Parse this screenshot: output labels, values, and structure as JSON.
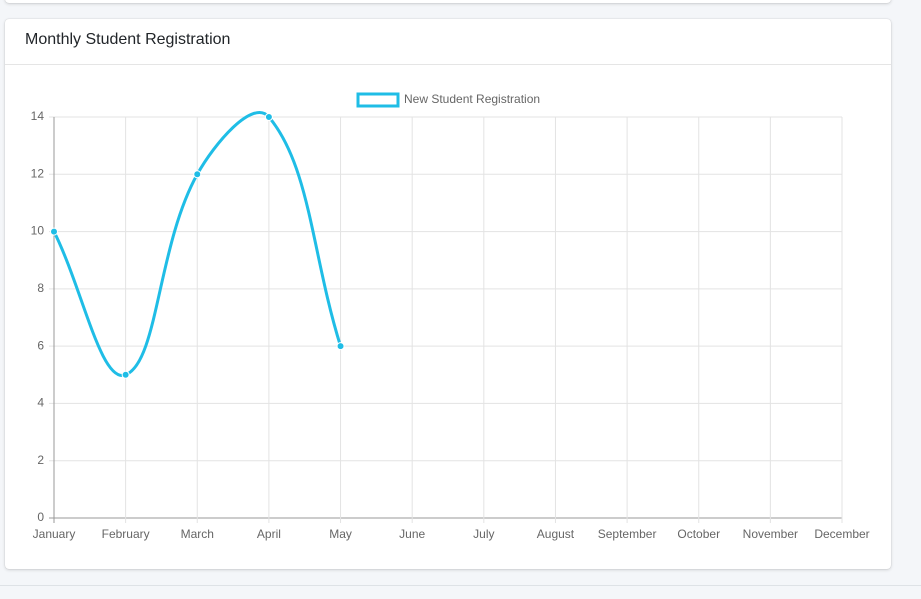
{
  "card": {
    "title": "Monthly Student Registration"
  },
  "chart_data": {
    "type": "line",
    "categories": [
      "January",
      "February",
      "March",
      "April",
      "May",
      "June",
      "July",
      "August",
      "September",
      "October",
      "November",
      "December"
    ],
    "series": [
      {
        "name": "New Student Registration",
        "color": "#1fbde6",
        "values": [
          10,
          5,
          12,
          14,
          6,
          null,
          null,
          null,
          null,
          null,
          null,
          null
        ]
      }
    ],
    "ylim": [
      0,
      14
    ],
    "yticks": [
      0,
      2,
      4,
      6,
      8,
      10,
      12,
      14
    ],
    "grid": true,
    "legend": "top"
  }
}
